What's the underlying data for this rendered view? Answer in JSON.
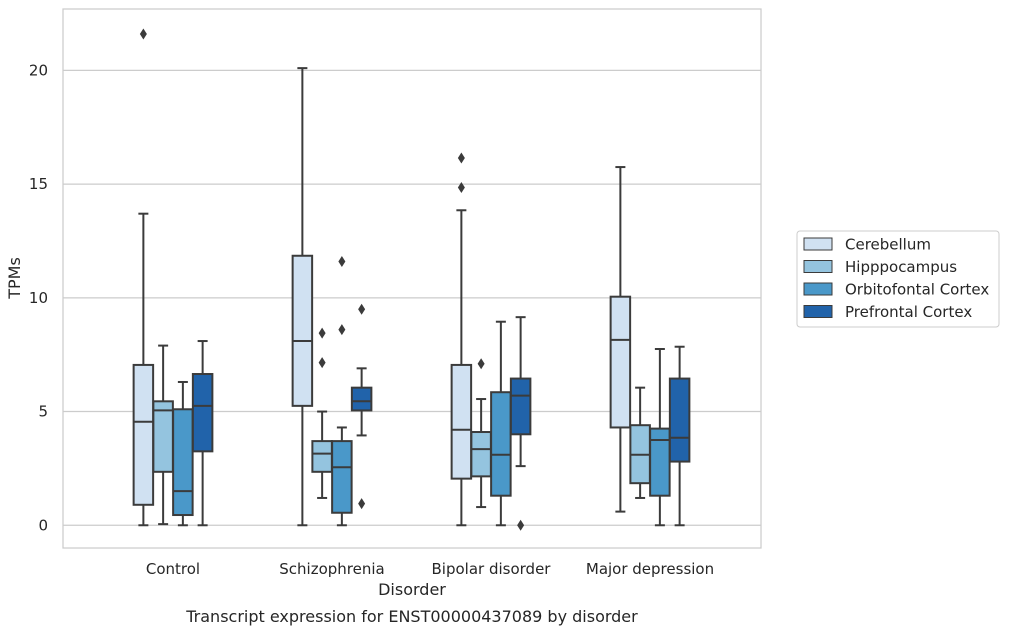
{
  "chart_data": {
    "type": "box",
    "title": "",
    "caption": "Transcript expression for ENST00000437089 by disorder",
    "xlabel": "Disorder",
    "ylabel": "TPMs",
    "ylim": [
      -1,
      22.7
    ],
    "yticks": [
      0,
      5,
      10,
      15,
      20
    ],
    "grid": "horizontal",
    "legend_position": "right",
    "categories": [
      "Control",
      "Schizophrenia",
      "Bipolar disorder",
      "Major depression"
    ],
    "series": [
      {
        "name": "Cerebellum",
        "color": "#d0e1f2",
        "boxes": [
          {
            "whisker_low": 0,
            "q1": 0.9,
            "median": 4.55,
            "q3": 7.05,
            "whisker_high": 13.7,
            "outliers": [
              21.6
            ]
          },
          {
            "whisker_low": 0,
            "q1": 5.25,
            "median": 8.1,
            "q3": 11.85,
            "whisker_high": 20.1,
            "outliers": []
          },
          {
            "whisker_low": 0,
            "q1": 2.05,
            "median": 4.2,
            "q3": 7.05,
            "whisker_high": 13.85,
            "outliers": [
              14.85,
              16.15
            ]
          },
          {
            "whisker_low": 0.6,
            "q1": 4.3,
            "median": 8.15,
            "q3": 10.05,
            "whisker_high": 15.75,
            "outliers": []
          }
        ]
      },
      {
        "name": "Hipppocampus",
        "color": "#94c4df",
        "boxes": [
          {
            "whisker_low": 0.05,
            "q1": 2.35,
            "median": 5.05,
            "q3": 5.45,
            "whisker_high": 7.9,
            "outliers": []
          },
          {
            "whisker_low": 1.2,
            "q1": 2.35,
            "median": 3.15,
            "q3": 3.7,
            "whisker_high": 5.0,
            "outliers": [
              7.15,
              8.45
            ]
          },
          {
            "whisker_low": 0.8,
            "q1": 2.15,
            "median": 3.35,
            "q3": 4.1,
            "whisker_high": 5.55,
            "outliers": [
              7.1
            ]
          },
          {
            "whisker_low": 1.2,
            "q1": 1.85,
            "median": 3.1,
            "q3": 4.4,
            "whisker_high": 6.05,
            "outliers": []
          }
        ]
      },
      {
        "name": "Orbitofontal Cortex",
        "color": "#4a98c9",
        "boxes": [
          {
            "whisker_low": 0,
            "q1": 0.45,
            "median": 1.5,
            "q3": 5.1,
            "whisker_high": 6.3,
            "outliers": []
          },
          {
            "whisker_low": 0,
            "q1": 0.55,
            "median": 2.55,
            "q3": 3.7,
            "whisker_high": 4.3,
            "outliers": [
              8.6,
              11.6
            ]
          },
          {
            "whisker_low": 0,
            "q1": 1.3,
            "median": 3.1,
            "q3": 5.85,
            "whisker_high": 8.95,
            "outliers": []
          },
          {
            "whisker_low": 0,
            "q1": 1.3,
            "median": 3.75,
            "q3": 4.25,
            "whisker_high": 7.75,
            "outliers": []
          }
        ]
      },
      {
        "name": "Prefrontal Cortex",
        "color": "#2163aa",
        "boxes": [
          {
            "whisker_low": 0,
            "q1": 3.25,
            "median": 5.25,
            "q3": 6.65,
            "whisker_high": 8.1,
            "outliers": []
          },
          {
            "whisker_low": 3.95,
            "q1": 5.05,
            "median": 5.45,
            "q3": 6.05,
            "whisker_high": 6.9,
            "outliers": [
              0.95,
              9.5
            ]
          },
          {
            "whisker_low": 2.6,
            "q1": 4.0,
            "median": 5.7,
            "q3": 6.45,
            "whisker_high": 9.15,
            "outliers": [
              0
            ]
          },
          {
            "whisker_low": 0,
            "q1": 2.8,
            "median": 3.85,
            "q3": 6.45,
            "whisker_high": 7.85,
            "outliers": []
          }
        ]
      }
    ]
  }
}
